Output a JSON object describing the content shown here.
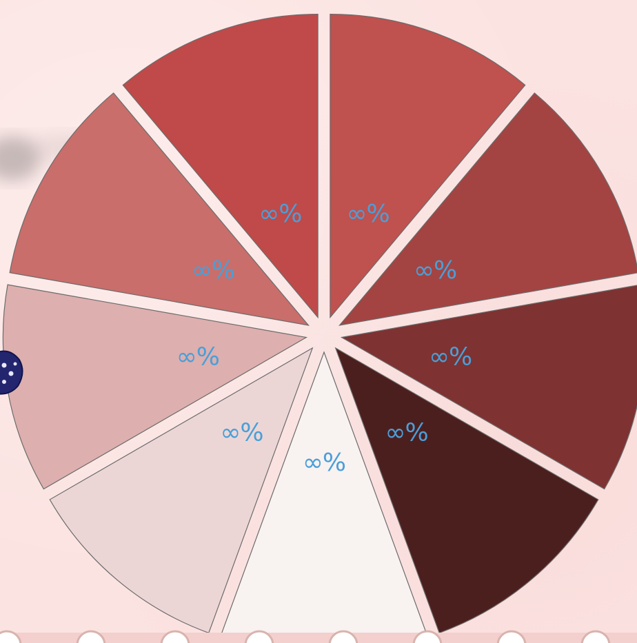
{
  "chart_data": {
    "type": "pie",
    "style": "exploded",
    "slices": [
      {
        "label": "∞%",
        "color": "#bf514f"
      },
      {
        "label": "∞%",
        "color": "#a34442"
      },
      {
        "label": "∞%",
        "color": "#7e3231"
      },
      {
        "label": "∞%",
        "color": "#4c1f1f"
      },
      {
        "label": "∞%",
        "color": "#f8f2f1"
      },
      {
        "label": "∞%",
        "color": "#ecd6d5"
      },
      {
        "label": "∞%",
        "color": "#ddafae"
      },
      {
        "label": "∞%",
        "color": "#c96e6b"
      },
      {
        "label": "∞%",
        "color": "#bf4a49"
      }
    ]
  },
  "decor": {
    "background_color": "#fbe3e1",
    "bead_color": "#ffffff",
    "bead_border_color": "#d9b3ad",
    "token_icon": "dice-icon",
    "token_color": "#2a2a80"
  }
}
